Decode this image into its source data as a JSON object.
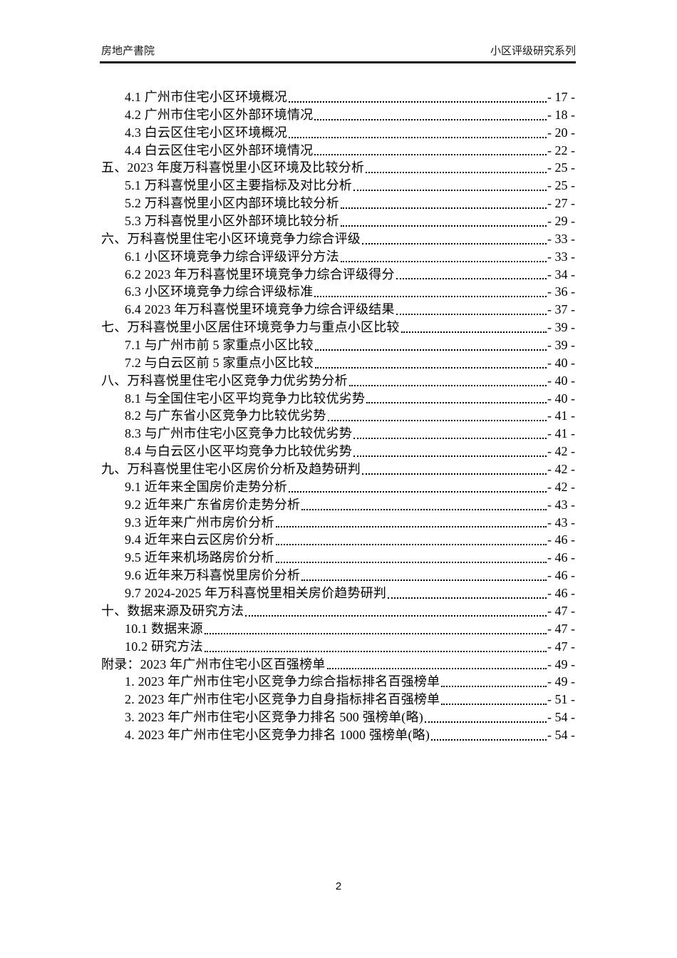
{
  "header": {
    "left": "房地产書院",
    "right": "小区评级研究系列"
  },
  "colors": {
    "background": "#ffffff",
    "text": "#000000",
    "header_rule": "#111111"
  },
  "toc": {
    "entries": [
      {
        "level": 2,
        "label": "4.1 广州市住宅小区环境概况",
        "page": "- 17 -"
      },
      {
        "level": 2,
        "label": "4.2 广州市住宅小区外部环境情况",
        "page": "- 18 -"
      },
      {
        "level": 2,
        "label": "4.3 白云区住宅小区环境概况",
        "page": "- 20 -"
      },
      {
        "level": 2,
        "label": "4.4 白云区住宅小区外部环境情况",
        "page": "- 22 -"
      },
      {
        "level": 1,
        "label": "五、2023 年度万科喜悦里小区环境及比较分析",
        "page": "- 25 -"
      },
      {
        "level": 2,
        "label": "5.1 万科喜悦里小区主要指标及对比分析",
        "page": "- 25 -"
      },
      {
        "level": 2,
        "label": "5.2 万科喜悦里小区内部环境比较分析",
        "page": "- 27 -"
      },
      {
        "level": 2,
        "label": "5.3 万科喜悦里小区外部环境比较分析",
        "page": "- 29 -"
      },
      {
        "level": 1,
        "label": "六、万科喜悦里住宅小区环境竞争力综合评级",
        "page": "- 33 -"
      },
      {
        "level": 2,
        "label": "6.1 小区环境竞争力综合评级评分方法",
        "page": "- 33 -"
      },
      {
        "level": 2,
        "label": "6.2 2023 年万科喜悦里环境竞争力综合评级得分",
        "page": "- 34 -"
      },
      {
        "level": 2,
        "label": "6.3 小区环境竞争力综合评级标准",
        "page": "- 36 -"
      },
      {
        "level": 2,
        "label": "6.4 2023 年万科喜悦里环境竞争力综合评级结果",
        "page": "- 37 -"
      },
      {
        "level": 1,
        "label": "七、万科喜悦里小区居住环境竞争力与重点小区比较",
        "page": "- 39 -"
      },
      {
        "level": 2,
        "label": "7.1 与广州市前 5 家重点小区比较",
        "page": "- 39 -"
      },
      {
        "level": 2,
        "label": "7.2 与白云区前 5 家重点小区比较",
        "page": "- 40 -"
      },
      {
        "level": 1,
        "label": "八、万科喜悦里住宅小区竞争力优劣势分析",
        "page": "- 40 -"
      },
      {
        "level": 2,
        "label": "8.1 与全国住宅小区平均竞争力比较优劣势",
        "page": "- 40 -"
      },
      {
        "level": 2,
        "label": "8.2 与广东省小区竞争力比较优劣势",
        "page": "- 41 -"
      },
      {
        "level": 2,
        "label": "8.3 与广州市住宅小区竞争力比较优劣势",
        "page": "- 41 -"
      },
      {
        "level": 2,
        "label": "8.4 与白云区小区平均竞争力比较优劣势",
        "page": "- 42 -"
      },
      {
        "level": 1,
        "label": "九、万科喜悦里住宅小区房价分析及趋势研判",
        "page": "- 42 -"
      },
      {
        "level": 2,
        "label": "9.1 近年来全国房价走势分析",
        "page": "- 42 -"
      },
      {
        "level": 2,
        "label": "9.2 近年来广东省房价走势分析",
        "page": "- 43 -"
      },
      {
        "level": 2,
        "label": "9.3 近年来广州市房价分析",
        "page": "- 43 -"
      },
      {
        "level": 2,
        "label": "9.4 近年来白云区房价分析",
        "page": "- 46 -"
      },
      {
        "level": 2,
        "label": "9.5 近年来机场路房价分析",
        "page": "- 46 -"
      },
      {
        "level": 2,
        "label": "9.6 近年来万科喜悦里房价分析",
        "page": "- 46 -"
      },
      {
        "level": 2,
        "label": "9.7 2024-2025 年万科喜悦里相关房价趋势研判",
        "page": "- 46 -"
      },
      {
        "level": 1,
        "label": "十、数据来源及研究方法",
        "page": "- 47 -"
      },
      {
        "level": 2,
        "label": "10.1 数据来源",
        "page": "- 47 -"
      },
      {
        "level": 2,
        "label": "10.2 研究方法",
        "page": "- 47 -"
      },
      {
        "level": 1,
        "label": "附录：2023 年广州市住宅小区百强榜单",
        "page": "- 49 -"
      },
      {
        "level": 2,
        "label": "1. 2023 年广州市住宅小区竞争力综合指标排名百强榜单",
        "page": "- 49 -"
      },
      {
        "level": 2,
        "label": "2. 2023 年广州市住宅小区竞争力自身指标排名百强榜单",
        "page": "- 51 -"
      },
      {
        "level": 2,
        "label": "3. 2023 年广州市住宅小区竞争力排名 500 强榜单(略)",
        "page": "- 54 -"
      },
      {
        "level": 2,
        "label": "4. 2023 年广州市住宅小区竞争力排名 1000 强榜单(略)",
        "page": "- 54 -"
      }
    ]
  },
  "footer": {
    "page_number": "2"
  }
}
